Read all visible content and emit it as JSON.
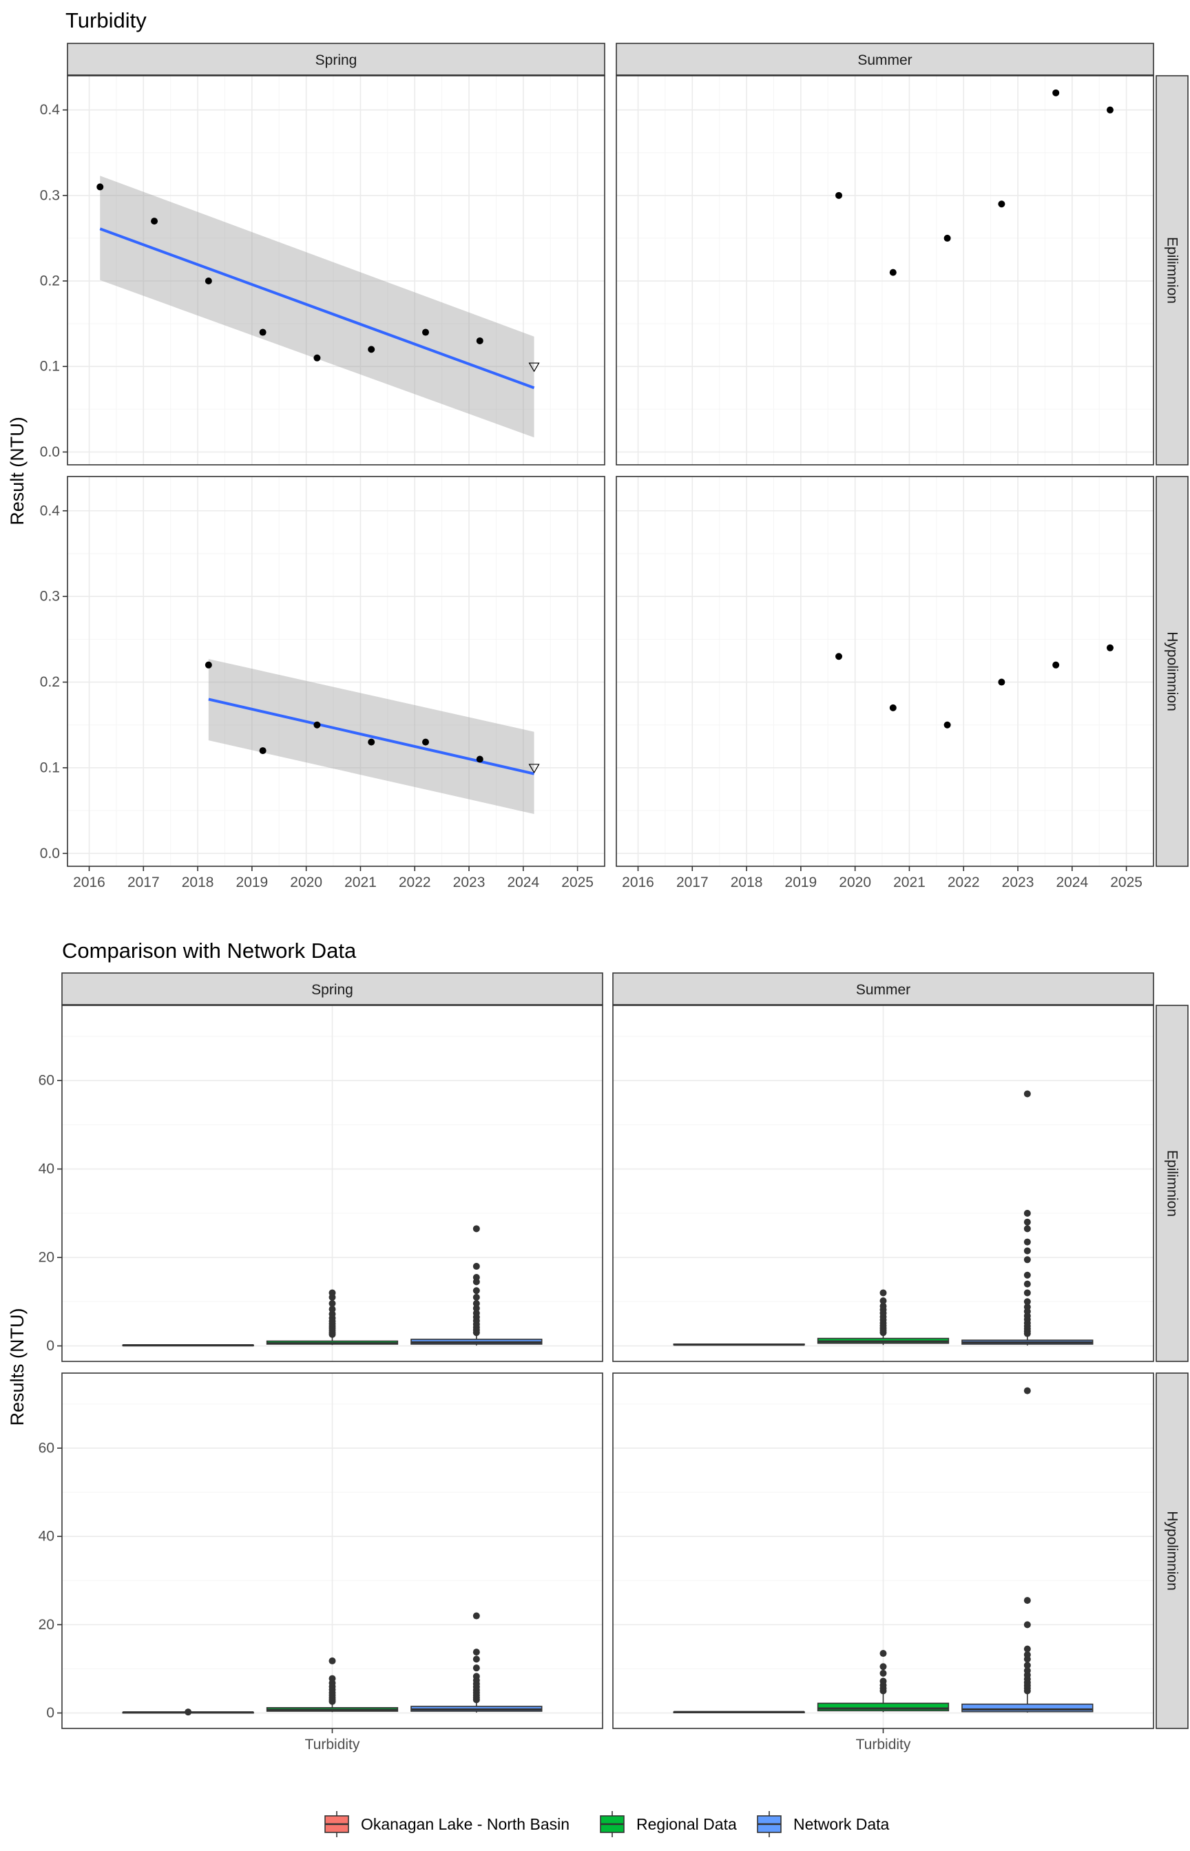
{
  "chart_data": [
    {
      "type": "scatter",
      "title": "Turbidity",
      "ylabel": "Result (NTU)",
      "xlabel": "",
      "columns": [
        "Spring",
        "Summer"
      ],
      "rows": [
        "Epilimnion",
        "Hypolimnion"
      ],
      "xlim": [
        2015.6,
        2025.5
      ],
      "ylim": [
        -0.015,
        0.44
      ],
      "x_ticks": [
        "2016",
        "2017",
        "2018",
        "2019",
        "2020",
        "2021",
        "2022",
        "2023",
        "2024",
        "2025"
      ],
      "y_ticks": [
        "0.0",
        "0.1",
        "0.2",
        "0.3",
        "0.4"
      ],
      "grid": true,
      "panels": [
        {
          "column": "Spring",
          "row": "Epilimnion",
          "points": [
            {
              "x": 2016.2,
              "y": 0.31
            },
            {
              "x": 2017.2,
              "y": 0.27
            },
            {
              "x": 2018.2,
              "y": 0.2
            },
            {
              "x": 2019.2,
              "y": 0.14
            },
            {
              "x": 2020.2,
              "y": 0.11
            },
            {
              "x": 2021.2,
              "y": 0.12
            },
            {
              "x": 2022.2,
              "y": 0.14
            },
            {
              "x": 2023.2,
              "y": 0.13
            }
          ],
          "below_detection": [
            {
              "x": 2024.2,
              "y": 0.1
            }
          ],
          "trend": {
            "x": [
              2016.2,
              2024.2
            ],
            "y": [
              0.261,
              0.075
            ],
            "lower": [
              0.201,
              0.017
            ],
            "upper": [
              0.323,
              0.135
            ]
          }
        },
        {
          "column": "Summer",
          "row": "Epilimnion",
          "points": [
            {
              "x": 2019.7,
              "y": 0.3
            },
            {
              "x": 2020.7,
              "y": 0.21
            },
            {
              "x": 2021.7,
              "y": 0.25
            },
            {
              "x": 2022.7,
              "y": 0.29
            },
            {
              "x": 2023.7,
              "y": 0.42
            },
            {
              "x": 2024.7,
              "y": 0.4
            }
          ],
          "below_detection": []
        },
        {
          "column": "Spring",
          "row": "Hypolimnion",
          "points": [
            {
              "x": 2018.2,
              "y": 0.22
            },
            {
              "x": 2019.2,
              "y": 0.12
            },
            {
              "x": 2020.2,
              "y": 0.15
            },
            {
              "x": 2021.2,
              "y": 0.13
            },
            {
              "x": 2022.2,
              "y": 0.13
            },
            {
              "x": 2023.2,
              "y": 0.11
            }
          ],
          "below_detection": [
            {
              "x": 2024.2,
              "y": 0.1
            }
          ],
          "trend": {
            "x": [
              2018.2,
              2024.2
            ],
            "y": [
              0.18,
              0.093
            ],
            "lower": [
              0.132,
              0.046
            ],
            "upper": [
              0.227,
              0.142
            ]
          }
        },
        {
          "column": "Summer",
          "row": "Hypolimnion",
          "points": [
            {
              "x": 2019.7,
              "y": 0.23
            },
            {
              "x": 2020.7,
              "y": 0.17
            },
            {
              "x": 2021.7,
              "y": 0.15
            },
            {
              "x": 2022.7,
              "y": 0.2
            },
            {
              "x": 2023.7,
              "y": 0.22
            },
            {
              "x": 2024.7,
              "y": 0.24
            }
          ],
          "below_detection": []
        }
      ]
    },
    {
      "type": "boxplot",
      "title": "Comparison with Network Data",
      "ylabel": "Results (NTU)",
      "xlabel": "",
      "category": "Turbidity",
      "columns": [
        "Spring",
        "Summer"
      ],
      "rows": [
        "Epilimnion",
        "Hypolimnion"
      ],
      "ylim": [
        -3.5,
        77
      ],
      "y_ticks": [
        "0",
        "20",
        "40",
        "60"
      ],
      "grid": true,
      "legend_position": "bottom",
      "groups": [
        {
          "name": "Okanagan Lake - North Basin",
          "color": "#F8766D"
        },
        {
          "name": "Regional Data",
          "color": "#00BA38"
        },
        {
          "name": "Network Data",
          "color": "#619CFF"
        }
      ],
      "panels": [
        {
          "column": "Spring",
          "row": "Epilimnion",
          "boxes": [
            {
              "group": "Okanagan Lake - North Basin",
              "q1": 0.12,
              "median": 0.14,
              "q3": 0.2,
              "whisker_low": 0.1,
              "whisker_high": 0.31,
              "outliers": []
            },
            {
              "group": "Regional Data",
              "q1": 0.4,
              "median": 0.6,
              "q3": 1.1,
              "whisker_low": 0.2,
              "whisker_high": 2.2,
              "outliers": [
                2.6,
                3.0,
                3.5,
                4.0,
                4.5,
                5.0,
                5.6,
                6.3,
                7.2,
                8.3,
                9.6,
                11.0,
                12.0
              ]
            },
            {
              "group": "Network Data",
              "q1": 0.4,
              "median": 0.8,
              "q3": 1.5,
              "whisker_low": 0.1,
              "whisker_high": 2.5,
              "outliers": [
                3.0,
                3.6,
                4.2,
                4.9,
                5.7,
                6.5,
                7.4,
                8.5,
                9.6,
                11.0,
                12.5,
                14.5,
                15.5,
                18.0,
                26.5
              ]
            }
          ]
        },
        {
          "column": "Summer",
          "row": "Epilimnion",
          "boxes": [
            {
              "group": "Okanagan Lake - North Basin",
              "q1": 0.25,
              "median": 0.29,
              "q3": 0.4,
              "whisker_low": 0.21,
              "whisker_high": 0.42,
              "outliers": []
            },
            {
              "group": "Regional Data",
              "q1": 0.6,
              "median": 1.0,
              "q3": 1.7,
              "whisker_low": 0.2,
              "whisker_high": 2.5,
              "outliers": [
                3.0,
                3.5,
                4.0,
                4.6,
                5.2,
                5.9,
                6.6,
                7.4,
                8.2,
                9.0,
                10.2,
                12.0
              ]
            },
            {
              "group": "Network Data",
              "q1": 0.4,
              "median": 0.8,
              "q3": 1.3,
              "whisker_low": 0.1,
              "whisker_high": 2.5,
              "outliers": [
                2.8,
                3.3,
                3.9,
                4.5,
                5.2,
                6.0,
                6.8,
                7.8,
                8.8,
                10.0,
                12.0,
                14.0,
                16.0,
                19.5,
                21.5,
                23.5,
                26.5,
                28.0,
                30.0,
                57.0
              ]
            }
          ]
        },
        {
          "column": "Spring",
          "row": "Hypolimnion",
          "boxes": [
            {
              "group": "Okanagan Lake - North Basin",
              "q1": 0.12,
              "median": 0.13,
              "q3": 0.15,
              "whisker_low": 0.11,
              "whisker_high": 0.15,
              "outliers": [
                0.22
              ]
            },
            {
              "group": "Regional Data",
              "q1": 0.4,
              "median": 0.7,
              "q3": 1.2,
              "whisker_low": 0.2,
              "whisker_high": 2.3,
              "outliers": [
                2.6,
                3.0,
                3.5,
                4.0,
                4.6,
                5.3,
                6.0,
                6.8,
                7.8,
                11.8
              ]
            },
            {
              "group": "Network Data",
              "q1": 0.4,
              "median": 0.8,
              "q3": 1.5,
              "whisker_low": 0.1,
              "whisker_high": 2.6,
              "outliers": [
                3.0,
                3.5,
                4.0,
                4.6,
                5.2,
                5.9,
                6.6,
                7.4,
                8.3,
                10.2,
                12.2,
                13.8,
                22.0
              ]
            }
          ]
        },
        {
          "column": "Summer",
          "row": "Hypolimnion",
          "boxes": [
            {
              "group": "Okanagan Lake - North Basin",
              "q1": 0.16,
              "median": 0.21,
              "q3": 0.23,
              "whisker_low": 0.15,
              "whisker_high": 0.24,
              "outliers": []
            },
            {
              "group": "Regional Data",
              "q1": 0.5,
              "median": 1.0,
              "q3": 2.2,
              "whisker_low": 0.2,
              "whisker_high": 4.5,
              "outliers": [
                5.0,
                5.6,
                6.3,
                7.2,
                9.0,
                10.5,
                13.5
              ]
            },
            {
              "group": "Network Data",
              "q1": 0.3,
              "median": 0.8,
              "q3": 2.0,
              "whisker_low": 0.1,
              "whisker_high": 4.6,
              "outliers": [
                5.0,
                5.6,
                6.2,
                6.9,
                7.7,
                8.6,
                9.6,
                10.8,
                12.2,
                13.2,
                14.5,
                20.0,
                25.5,
                73.0
              ]
            }
          ]
        }
      ]
    }
  ]
}
